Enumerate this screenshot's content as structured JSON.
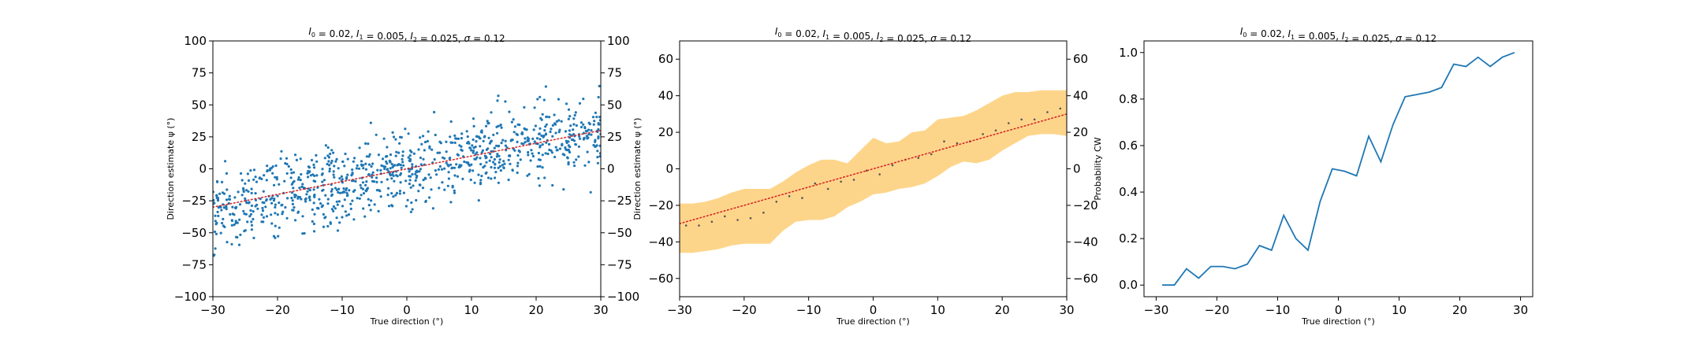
{
  "chart_data": [
    {
      "type": "scatter",
      "title": "$I_0=0.02$, $I_1=0.005$, $I_2=0.025$, $\\sigma=0.12$",
      "xlabel": "True direction (°)",
      "ylabel": "Direction estimate ψ (°)",
      "xlim": [
        -30,
        30
      ],
      "ylim": [
        -100,
        100
      ],
      "xticks": [
        -30,
        -20,
        -10,
        0,
        10,
        20,
        30
      ],
      "yticks": [
        -100,
        -75,
        -50,
        -25,
        0,
        25,
        50,
        75,
        100
      ],
      "right_ticks": true,
      "grid": false,
      "series": [
        {
          "kind": "points",
          "color": "#1f77b4",
          "generator": "noisy-identity",
          "n": 1000,
          "slope": 1.05,
          "sd": 15
        },
        {
          "kind": "reference-line",
          "color": "#d62728",
          "style": "dotted",
          "x": [
            -30,
            30
          ],
          "y": [
            -30,
            30
          ]
        }
      ]
    },
    {
      "type": "scatter",
      "title": "$I_0=0.02$, $I_1=0.005$, $I_2=0.025$, $\\sigma=0.12$",
      "xlabel": "True direction (°)",
      "ylabel": "Direction estimate ψ (°)",
      "xlim": [
        -30,
        30
      ],
      "ylim": [
        -70,
        70
      ],
      "xticks": [
        -30,
        -20,
        -10,
        0,
        10,
        20,
        30
      ],
      "yticks": [
        -60,
        -40,
        -20,
        0,
        20,
        40,
        60
      ],
      "right_ticks": true,
      "grid": false,
      "band_color": "#fdd58a",
      "x": [
        -30,
        -28,
        -26,
        -24,
        -22,
        -20,
        -18,
        -16,
        -14,
        -12,
        -10,
        -8,
        -6,
        -4,
        -2,
        0,
        2,
        4,
        6,
        8,
        10,
        12,
        14,
        16,
        18,
        20,
        22,
        24,
        26,
        28,
        30
      ],
      "band_upper": [
        -19,
        -19,
        -18,
        -16,
        -13,
        -11,
        -11,
        -11,
        -7,
        -2,
        2,
        5,
        5,
        3,
        10,
        17,
        14,
        15,
        20,
        21,
        27,
        28,
        29,
        32,
        36,
        40,
        42,
        42,
        43,
        43,
        43
      ],
      "band_lower": [
        -46,
        -46,
        -45,
        -44,
        -42,
        -41,
        -41,
        -41,
        -34,
        -29,
        -28,
        -28,
        -26,
        -21,
        -18,
        -14,
        -13,
        -11,
        -10,
        -8,
        -4,
        1,
        4,
        3,
        5,
        10,
        14,
        18,
        19,
        19,
        18
      ],
      "means": {
        "x": [
          -29,
          -27,
          -25,
          -23,
          -21,
          -19,
          -17,
          -15,
          -13,
          -11,
          -9,
          -7,
          -5,
          -3,
          -1,
          1,
          3,
          5,
          7,
          9,
          11,
          13,
          15,
          17,
          19,
          21,
          23,
          25,
          27,
          29
        ],
        "y": [
          -31,
          -31,
          -29,
          -26,
          -28,
          -27,
          -24,
          -18,
          -15,
          -16,
          -8,
          -11,
          -7,
          -6,
          -1,
          -3,
          2,
          5,
          6,
          8,
          15,
          14,
          15,
          19,
          21,
          25,
          27,
          27,
          31,
          33
        ]
      },
      "series": [
        {
          "kind": "reference-line",
          "color": "#d62728",
          "style": "dotted",
          "x": [
            -30,
            30
          ],
          "y": [
            -30,
            30
          ]
        }
      ]
    },
    {
      "type": "line",
      "title": "$I_0=0.02$, $I_1=0.005$, $I_2=0.025$, $\\sigma=0.12$",
      "xlabel": "True direction (°)",
      "ylabel": "Probability CW",
      "xlim": [
        -32,
        32
      ],
      "ylim": [
        -0.05,
        1.05
      ],
      "xticks": [
        -30,
        -20,
        -10,
        0,
        10,
        20,
        30
      ],
      "yticks": [
        0.0,
        0.2,
        0.4,
        0.6,
        0.8,
        1.0
      ],
      "ytick_labels": [
        "0.0",
        "0.2",
        "0.4",
        "0.6",
        "0.8",
        "1.0"
      ],
      "grid": false,
      "series": [
        {
          "color": "#1f77b4",
          "x": [
            -29,
            -27,
            -25,
            -23,
            -21,
            -19,
            -17,
            -15,
            -13,
            -11,
            -9,
            -7,
            -5,
            -3,
            -1,
            1,
            3,
            5,
            7,
            9,
            11,
            13,
            15,
            17,
            19,
            21,
            23,
            25,
            27,
            29
          ],
          "y": [
            0.0,
            0.0,
            0.07,
            0.03,
            0.08,
            0.08,
            0.07,
            0.09,
            0.17,
            0.15,
            0.3,
            0.2,
            0.15,
            0.36,
            0.5,
            0.49,
            0.47,
            0.64,
            0.53,
            0.69,
            0.81,
            0.82,
            0.83,
            0.85,
            0.95,
            0.94,
            0.98,
            0.94,
            0.98,
            1.0
          ]
        }
      ]
    }
  ]
}
